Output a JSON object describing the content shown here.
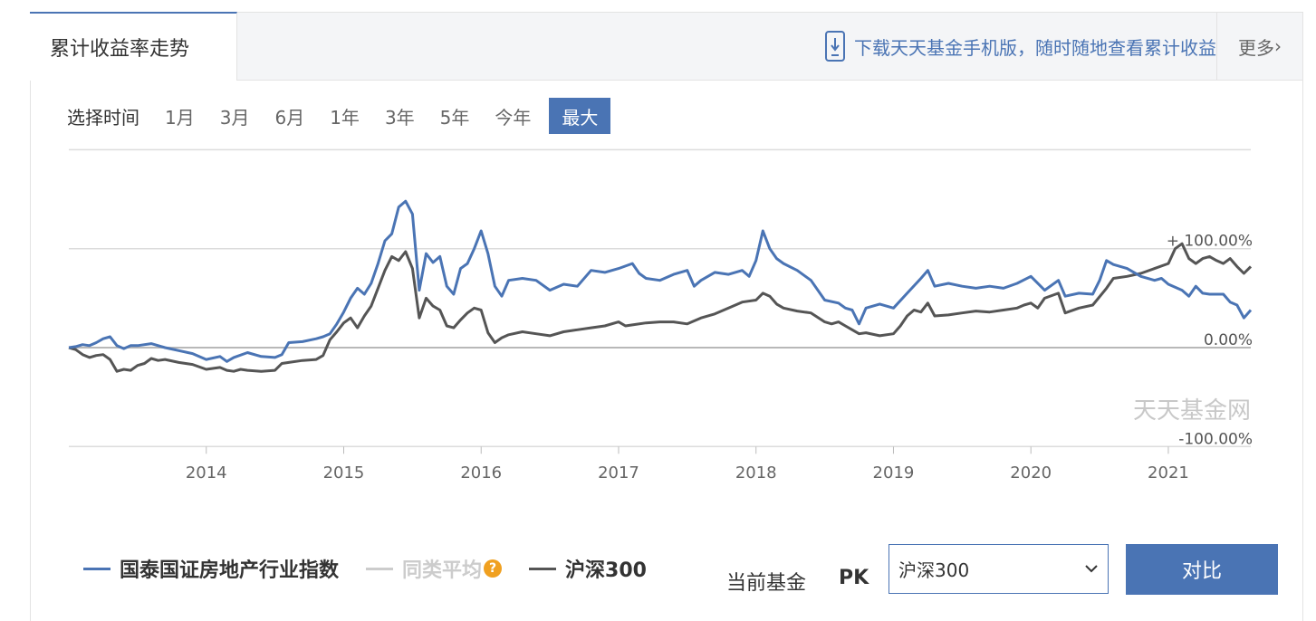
{
  "header": {
    "tab_title": "累计收益率走势",
    "download_text": "下载天天基金手机版，随时随地查看累计收益",
    "more_label": "更多"
  },
  "timebar": {
    "label": "选择时间",
    "options": [
      "1月",
      "3月",
      "6月",
      "1年",
      "3年",
      "5年",
      "今年",
      "最大"
    ],
    "selected": "最大"
  },
  "chart_data": {
    "type": "line",
    "watermark": "天天基金网",
    "ytick_labels": [
      "+ 100.00%",
      "0.00%",
      "-100.00%"
    ],
    "xtick_labels": [
      "2014",
      "2015",
      "2016",
      "2017",
      "2018",
      "2019",
      "2020",
      "2021"
    ],
    "ylim": [
      -100,
      200
    ],
    "series": [
      {
        "name": "国泰国证房地产行业指数",
        "color": "#4a74b4",
        "points": [
          [
            2013.0,
            0
          ],
          [
            2013.05,
            1
          ],
          [
            2013.1,
            3
          ],
          [
            2013.15,
            2
          ],
          [
            2013.2,
            5
          ],
          [
            2013.25,
            9
          ],
          [
            2013.3,
            11
          ],
          [
            2013.35,
            2
          ],
          [
            2013.4,
            -1
          ],
          [
            2013.45,
            2
          ],
          [
            2013.5,
            2
          ],
          [
            2013.6,
            4
          ],
          [
            2013.7,
            0
          ],
          [
            2013.8,
            -3
          ],
          [
            2013.9,
            -6
          ],
          [
            2014.0,
            -12
          ],
          [
            2014.1,
            -9
          ],
          [
            2014.15,
            -14
          ],
          [
            2014.2,
            -10
          ],
          [
            2014.3,
            -5
          ],
          [
            2014.4,
            -9
          ],
          [
            2014.5,
            -10
          ],
          [
            2014.55,
            -7
          ],
          [
            2014.6,
            5
          ],
          [
            2014.7,
            6
          ],
          [
            2014.8,
            9
          ],
          [
            2014.85,
            11
          ],
          [
            2014.9,
            14
          ],
          [
            2014.95,
            24
          ],
          [
            2015.0,
            36
          ],
          [
            2015.05,
            50
          ],
          [
            2015.1,
            60
          ],
          [
            2015.15,
            54
          ],
          [
            2015.2,
            65
          ],
          [
            2015.25,
            85
          ],
          [
            2015.3,
            108
          ],
          [
            2015.35,
            115
          ],
          [
            2015.4,
            142
          ],
          [
            2015.45,
            148
          ],
          [
            2015.5,
            135
          ],
          [
            2015.55,
            58
          ],
          [
            2015.6,
            95
          ],
          [
            2015.65,
            86
          ],
          [
            2015.7,
            92
          ],
          [
            2015.75,
            62
          ],
          [
            2015.8,
            54
          ],
          [
            2015.85,
            80
          ],
          [
            2015.9,
            85
          ],
          [
            2015.95,
            100
          ],
          [
            2016.0,
            118
          ],
          [
            2016.05,
            95
          ],
          [
            2016.1,
            62
          ],
          [
            2016.15,
            52
          ],
          [
            2016.2,
            68
          ],
          [
            2016.3,
            70
          ],
          [
            2016.4,
            68
          ],
          [
            2016.5,
            58
          ],
          [
            2016.6,
            64
          ],
          [
            2016.7,
            62
          ],
          [
            2016.8,
            78
          ],
          [
            2016.9,
            76
          ],
          [
            2017.0,
            80
          ],
          [
            2017.1,
            85
          ],
          [
            2017.15,
            75
          ],
          [
            2017.2,
            70
          ],
          [
            2017.3,
            68
          ],
          [
            2017.4,
            74
          ],
          [
            2017.5,
            78
          ],
          [
            2017.55,
            62
          ],
          [
            2017.6,
            68
          ],
          [
            2017.7,
            76
          ],
          [
            2017.8,
            74
          ],
          [
            2017.9,
            78
          ],
          [
            2017.95,
            72
          ],
          [
            2018.0,
            88
          ],
          [
            2018.05,
            118
          ],
          [
            2018.1,
            100
          ],
          [
            2018.15,
            90
          ],
          [
            2018.2,
            85
          ],
          [
            2018.3,
            78
          ],
          [
            2018.4,
            68
          ],
          [
            2018.5,
            48
          ],
          [
            2018.6,
            45
          ],
          [
            2018.65,
            40
          ],
          [
            2018.7,
            38
          ],
          [
            2018.75,
            24
          ],
          [
            2018.8,
            40
          ],
          [
            2018.9,
            44
          ],
          [
            2019.0,
            40
          ],
          [
            2019.1,
            55
          ],
          [
            2019.2,
            70
          ],
          [
            2019.25,
            78
          ],
          [
            2019.3,
            62
          ],
          [
            2019.4,
            65
          ],
          [
            2019.5,
            62
          ],
          [
            2019.6,
            60
          ],
          [
            2019.7,
            62
          ],
          [
            2019.8,
            60
          ],
          [
            2019.9,
            65
          ],
          [
            2020.0,
            72
          ],
          [
            2020.1,
            58
          ],
          [
            2020.2,
            68
          ],
          [
            2020.25,
            52
          ],
          [
            2020.35,
            55
          ],
          [
            2020.45,
            54
          ],
          [
            2020.5,
            68
          ],
          [
            2020.55,
            88
          ],
          [
            2020.6,
            84
          ],
          [
            2020.7,
            80
          ],
          [
            2020.8,
            72
          ],
          [
            2020.9,
            68
          ],
          [
            2020.95,
            70
          ],
          [
            2021.0,
            64
          ],
          [
            2021.1,
            58
          ],
          [
            2021.15,
            52
          ],
          [
            2021.2,
            62
          ],
          [
            2021.25,
            55
          ],
          [
            2021.3,
            54
          ],
          [
            2021.35,
            54
          ],
          [
            2021.4,
            54
          ],
          [
            2021.45,
            46
          ],
          [
            2021.5,
            43
          ],
          [
            2021.55,
            30
          ],
          [
            2021.6,
            38
          ]
        ]
      },
      {
        "name": "同类平均",
        "color": "#cccccc",
        "points": []
      },
      {
        "name": "沪深300",
        "color": "#555555",
        "points": [
          [
            2013.0,
            0
          ],
          [
            2013.05,
            -2
          ],
          [
            2013.1,
            -7
          ],
          [
            2013.15,
            -10
          ],
          [
            2013.2,
            -8
          ],
          [
            2013.25,
            -7
          ],
          [
            2013.3,
            -12
          ],
          [
            2013.35,
            -24
          ],
          [
            2013.4,
            -22
          ],
          [
            2013.45,
            -23
          ],
          [
            2013.5,
            -18
          ],
          [
            2013.55,
            -16
          ],
          [
            2013.6,
            -11
          ],
          [
            2013.65,
            -13
          ],
          [
            2013.7,
            -12
          ],
          [
            2013.8,
            -15
          ],
          [
            2013.9,
            -17
          ],
          [
            2014.0,
            -22
          ],
          [
            2014.1,
            -20
          ],
          [
            2014.15,
            -23
          ],
          [
            2014.2,
            -24
          ],
          [
            2014.25,
            -22
          ],
          [
            2014.3,
            -23
          ],
          [
            2014.4,
            -24
          ],
          [
            2014.5,
            -23
          ],
          [
            2014.55,
            -16
          ],
          [
            2014.6,
            -15
          ],
          [
            2014.7,
            -13
          ],
          [
            2014.8,
            -12
          ],
          [
            2014.85,
            -8
          ],
          [
            2014.9,
            8
          ],
          [
            2014.95,
            16
          ],
          [
            2015.0,
            25
          ],
          [
            2015.05,
            30
          ],
          [
            2015.1,
            20
          ],
          [
            2015.15,
            32
          ],
          [
            2015.2,
            42
          ],
          [
            2015.25,
            60
          ],
          [
            2015.3,
            78
          ],
          [
            2015.35,
            92
          ],
          [
            2015.4,
            88
          ],
          [
            2015.45,
            97
          ],
          [
            2015.5,
            80
          ],
          [
            2015.55,
            30
          ],
          [
            2015.6,
            50
          ],
          [
            2015.65,
            42
          ],
          [
            2015.7,
            38
          ],
          [
            2015.75,
            22
          ],
          [
            2015.8,
            20
          ],
          [
            2015.85,
            28
          ],
          [
            2015.9,
            35
          ],
          [
            2015.95,
            40
          ],
          [
            2016.0,
            38
          ],
          [
            2016.05,
            15
          ],
          [
            2016.1,
            5
          ],
          [
            2016.15,
            10
          ],
          [
            2016.2,
            13
          ],
          [
            2016.3,
            16
          ],
          [
            2016.4,
            14
          ],
          [
            2016.5,
            12
          ],
          [
            2016.6,
            16
          ],
          [
            2016.7,
            18
          ],
          [
            2016.8,
            20
          ],
          [
            2016.9,
            22
          ],
          [
            2017.0,
            26
          ],
          [
            2017.05,
            22
          ],
          [
            2017.1,
            23
          ],
          [
            2017.2,
            25
          ],
          [
            2017.3,
            26
          ],
          [
            2017.4,
            26
          ],
          [
            2017.5,
            24
          ],
          [
            2017.6,
            30
          ],
          [
            2017.7,
            34
          ],
          [
            2017.8,
            40
          ],
          [
            2017.9,
            46
          ],
          [
            2018.0,
            48
          ],
          [
            2018.05,
            55
          ],
          [
            2018.1,
            52
          ],
          [
            2018.15,
            44
          ],
          [
            2018.2,
            40
          ],
          [
            2018.3,
            37
          ],
          [
            2018.4,
            35
          ],
          [
            2018.5,
            26
          ],
          [
            2018.55,
            24
          ],
          [
            2018.6,
            26
          ],
          [
            2018.65,
            22
          ],
          [
            2018.7,
            18
          ],
          [
            2018.75,
            14
          ],
          [
            2018.8,
            15
          ],
          [
            2018.9,
            12
          ],
          [
            2019.0,
            14
          ],
          [
            2019.05,
            22
          ],
          [
            2019.1,
            32
          ],
          [
            2019.15,
            38
          ],
          [
            2019.2,
            36
          ],
          [
            2019.25,
            45
          ],
          [
            2019.3,
            32
          ],
          [
            2019.4,
            33
          ],
          [
            2019.5,
            35
          ],
          [
            2019.6,
            37
          ],
          [
            2019.7,
            36
          ],
          [
            2019.8,
            38
          ],
          [
            2019.9,
            40
          ],
          [
            2019.95,
            43
          ],
          [
            2020.0,
            45
          ],
          [
            2020.05,
            40
          ],
          [
            2020.1,
            50
          ],
          [
            2020.2,
            55
          ],
          [
            2020.25,
            35
          ],
          [
            2020.35,
            40
          ],
          [
            2020.45,
            43
          ],
          [
            2020.55,
            60
          ],
          [
            2020.6,
            70
          ],
          [
            2020.7,
            72
          ],
          [
            2020.8,
            75
          ],
          [
            2020.9,
            80
          ],
          [
            2021.0,
            85
          ],
          [
            2021.05,
            100
          ],
          [
            2021.1,
            105
          ],
          [
            2021.15,
            90
          ],
          [
            2021.2,
            85
          ],
          [
            2021.25,
            90
          ],
          [
            2021.3,
            92
          ],
          [
            2021.35,
            88
          ],
          [
            2021.4,
            85
          ],
          [
            2021.45,
            90
          ],
          [
            2021.5,
            82
          ],
          [
            2021.55,
            75
          ],
          [
            2021.6,
            82
          ]
        ]
      }
    ]
  },
  "pk": {
    "label": "当前基金",
    "pk_text": "PK",
    "select_value": "沪深300",
    "compare_label": "对比"
  }
}
